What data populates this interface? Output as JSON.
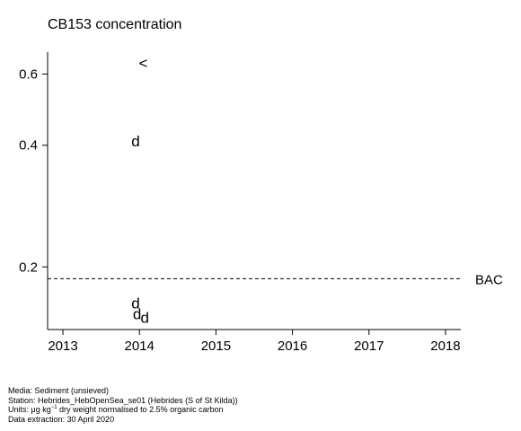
{
  "chart_data": {
    "type": "scatter",
    "title": "CB153 concentration",
    "xlabel": "",
    "ylabel": "",
    "x_ticks": [
      2013,
      2014,
      2015,
      2016,
      2017,
      2018
    ],
    "y_ticks": [
      0.2,
      0.4,
      0.6
    ],
    "y_scale": "log",
    "xlim": [
      2012.8,
      2018.2
    ],
    "ylim": [
      0.14,
      0.68
    ],
    "grid": false,
    "points": [
      {
        "x": 2014.05,
        "y": 0.64,
        "marker": "<"
      },
      {
        "x": 2013.95,
        "y": 0.41,
        "marker": "d"
      },
      {
        "x": 2013.95,
        "y": 0.163,
        "marker": "d"
      },
      {
        "x": 2013.97,
        "y": 0.153,
        "marker": "d"
      },
      {
        "x": 2014.07,
        "y": 0.15,
        "marker": "d"
      }
    ],
    "reference_lines": [
      {
        "label": "BAC",
        "y": 0.187,
        "style": "dashed"
      }
    ]
  },
  "footer": {
    "media": "Media: Sediment (unsieved)",
    "station": "Station: Hebrides_HebOpenSea_se01 (Hebrides (S of St Kilda))",
    "units_prefix": "Units: μg kg",
    "units_sup": "−1",
    "units_suffix": " dry weight normalised to 2.5% organic carbon",
    "extraction": "Data extraction: 30 April 2020"
  }
}
